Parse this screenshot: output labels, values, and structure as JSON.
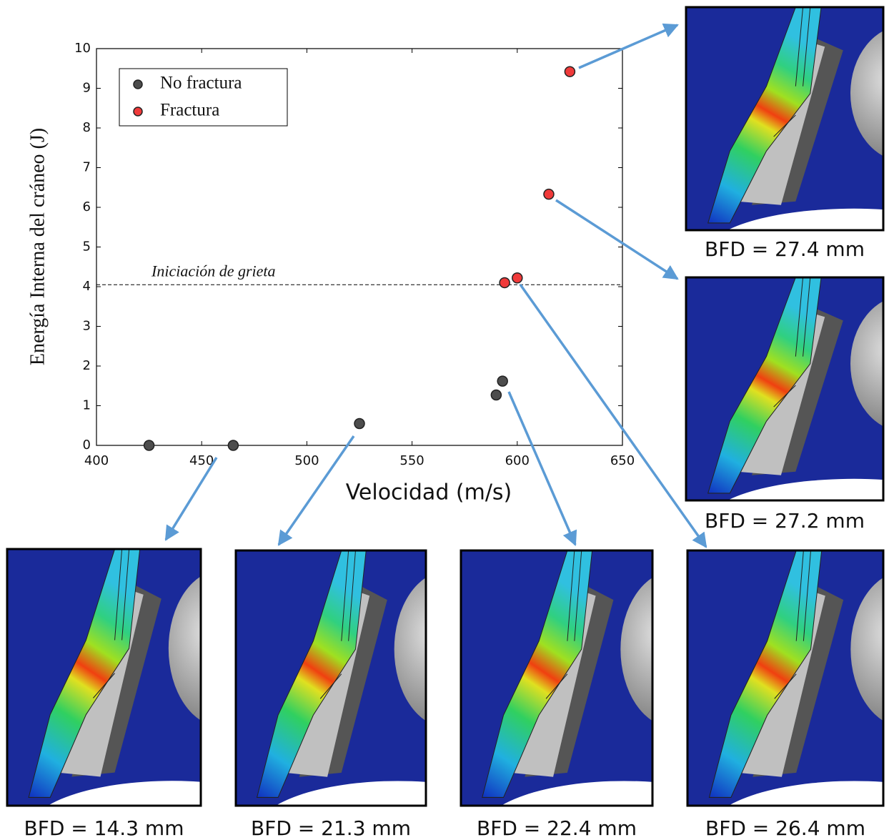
{
  "chart_data": {
    "type": "scatter",
    "xlabel": "Velocidad (m/s)",
    "ylabel": "Energía Interna del cráneo (J)",
    "xlim": [
      400,
      650
    ],
    "xticks": [
      400,
      450,
      500,
      550,
      600,
      650
    ],
    "ylim": [
      0,
      10
    ],
    "yticks": [
      0,
      1,
      2,
      3,
      4,
      5,
      6,
      7,
      8,
      9,
      10
    ],
    "grid": false,
    "legend": "upper left",
    "series": [
      {
        "name": "No fractura",
        "color": "#4d4d4d",
        "x": [
          425,
          465,
          525,
          590,
          593
        ],
        "values": [
          0,
          0,
          0.55,
          1.27,
          1.62
        ]
      },
      {
        "name": "Fractura",
        "color": "#f03a3a",
        "x": [
          594,
          600,
          615,
          625
        ],
        "values": [
          4.1,
          4.22,
          6.33,
          9.42
        ]
      }
    ],
    "threshold": {
      "label": "Iniciación de grieta",
      "value": 4.05
    },
    "insets": [
      "BFD = 27.4 mm",
      "BFD = 27.2 mm",
      "BFD = 14.3 mm",
      "BFD = 21.3 mm",
      "BFD = 22.4 mm",
      "BFD = 26.4 mm"
    ]
  }
}
